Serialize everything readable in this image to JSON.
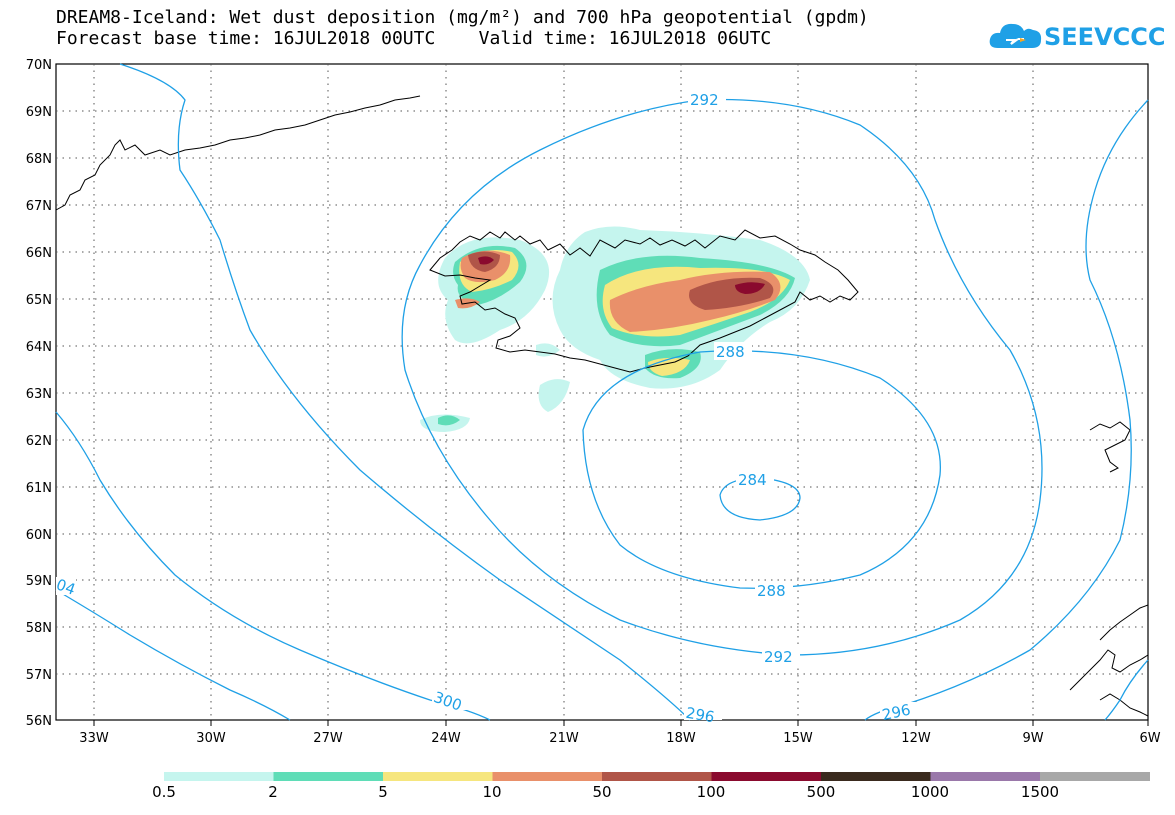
{
  "title": {
    "line1": "DREAM8-Iceland: Wet dust deposition (mg/m²) and 700 hPa geopotential (gpdm)",
    "line2": "Forecast base time: 16JUL2018 00UTC    Valid time: 16JUL2018 06UTC"
  },
  "logo": {
    "text": "SEEVCCC",
    "icon": "cloud-logo-icon",
    "color": "#1fa0e6"
  },
  "axes": {
    "lat_labels": [
      "70N",
      "69N",
      "68N",
      "67N",
      "66N",
      "65N",
      "64N",
      "63N",
      "62N",
      "61N",
      "60N",
      "59N",
      "58N",
      "57N",
      "56N"
    ],
    "lon_labels": [
      "33W",
      "30W",
      "27W",
      "24W",
      "21W",
      "18W",
      "15W",
      "12W",
      "9W",
      "6W"
    ]
  },
  "contours": {
    "color": "#1fa0e6",
    "labels": [
      "292",
      "288",
      "284",
      "288",
      "292",
      "296",
      "296",
      "300",
      "04"
    ]
  },
  "legend": {
    "colors": [
      "#c5f5ee",
      "#5fddb7",
      "#f6e67e",
      "#e9906a",
      "#b05548",
      "#8a0a2e",
      "#3a2a1e",
      "#9a78aa",
      "#a8a8a8"
    ],
    "labels": [
      "0.5",
      "2",
      "5",
      "10",
      "50",
      "100",
      "500",
      "1000",
      "1500"
    ]
  }
}
